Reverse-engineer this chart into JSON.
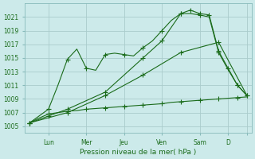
{
  "title": "",
  "xlabel": "Pression niveau de la mer( hPa )",
  "bg_color": "#cceaea",
  "grid_color": "#aacccc",
  "line_color": "#1a6b1a",
  "ylim": [
    1004.0,
    1023.0
  ],
  "yticks": [
    1005,
    1007,
    1009,
    1011,
    1013,
    1015,
    1017,
    1019,
    1021
  ],
  "series": [
    {
      "x": [
        0,
        1,
        2,
        3,
        4,
        5,
        6,
        7,
        8,
        9,
        10,
        11,
        12,
        13,
        14,
        15,
        16,
        17,
        18,
        19,
        20,
        21,
        22,
        23
      ],
      "y": [
        1005.5,
        1006.2,
        1006.8,
        1007.0,
        1007.2,
        1007.3,
        1007.5,
        1007.6,
        1007.7,
        1007.8,
        1007.9,
        1008.0,
        1008.1,
        1008.2,
        1008.3,
        1008.5,
        1008.6,
        1008.7,
        1008.8,
        1008.9,
        1009.0,
        1009.1,
        1009.2,
        1009.3
      ],
      "style": "-",
      "marker": "D",
      "markersize": 2,
      "linewidth": 0.8,
      "every": 2
    },
    {
      "x": [
        0,
        1,
        2,
        3,
        4,
        5,
        6,
        7,
        8,
        9,
        10,
        11,
        12,
        13,
        14,
        15,
        16,
        17,
        18,
        19,
        20,
        21,
        22,
        23
      ],
      "y": [
        1005.5,
        1006.5,
        1007.5,
        1011.0,
        1014.8,
        1016.3,
        1013.5,
        1013.2,
        1015.5,
        1015.7,
        1015.5,
        1015.3,
        1016.5,
        1017.5,
        1019.0,
        1020.5,
        1021.5,
        1021.5,
        1021.3,
        1021.0,
        1015.8,
        1013.3,
        1011.0,
        1009.5
      ],
      "style": "-",
      "marker": "D",
      "markersize": 2,
      "linewidth": 0.8,
      "every": 2
    },
    {
      "x": [
        0,
        4,
        8,
        12,
        16,
        20,
        23
      ],
      "y": [
        1005.5,
        1007.0,
        1009.5,
        1012.5,
        1015.8,
        1017.3,
        1009.5
      ],
      "style": "-",
      "marker": "D",
      "markersize": 2,
      "linewidth": 0.8,
      "every": 1
    },
    {
      "x": [
        0,
        2,
        4,
        8,
        12,
        14,
        16,
        17,
        18,
        19,
        20,
        21,
        22,
        23
      ],
      "y": [
        1005.5,
        1006.5,
        1007.5,
        1010.0,
        1015.0,
        1017.5,
        1021.5,
        1022.0,
        1021.5,
        1021.3,
        1016.0,
        1013.5,
        1011.0,
        1009.5
      ],
      "style": "-",
      "marker": "D",
      "markersize": 2,
      "linewidth": 0.8,
      "every": 1
    }
  ],
  "xtick_positions": [
    2,
    6,
    10,
    14,
    18,
    21,
    23
  ],
  "xtick_labels": [
    "Lun",
    "Mer",
    "Jeu",
    "Ven",
    "Sam",
    "D",
    ""
  ],
  "xlim": [
    -0.5,
    23.5
  ]
}
